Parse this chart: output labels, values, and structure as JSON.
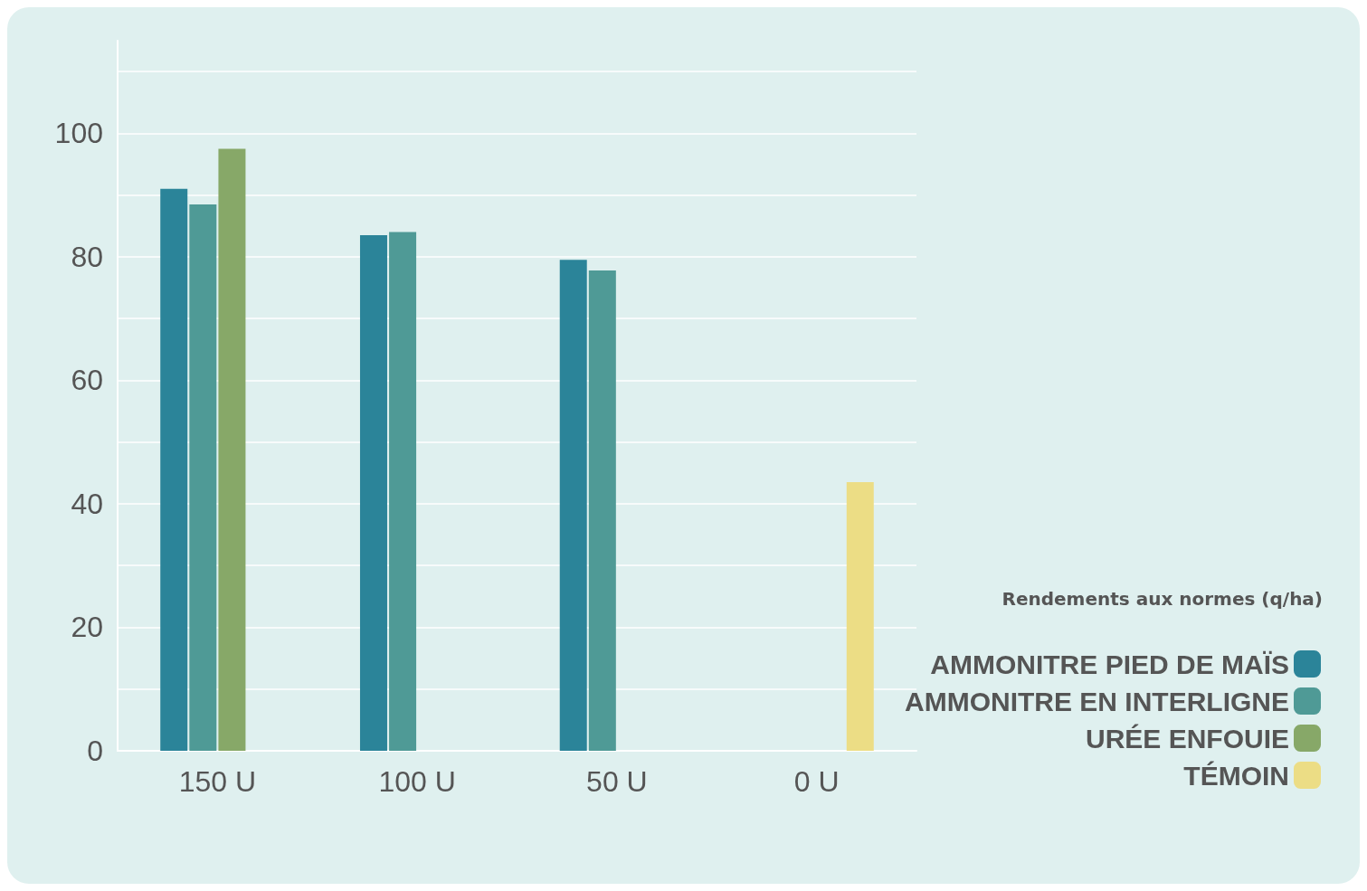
{
  "chart_data": {
    "type": "bar",
    "categories": [
      "150 U",
      "100 U",
      "50 U",
      "0 U"
    ],
    "series": [
      {
        "name": "AMMONITRE PIED DE MAÏS",
        "color": "#2b8499",
        "values": [
          91,
          83.5,
          79.5,
          null
        ]
      },
      {
        "name": "AMMONITRE EN INTERLIGNE",
        "color": "#4f9a96",
        "values": [
          88.5,
          84,
          77.8,
          null
        ]
      },
      {
        "name": "URÉE ENFOUIE",
        "color": "#87a868",
        "values": [
          97.5,
          null,
          null,
          null
        ]
      },
      {
        "name": "TÉMOIN",
        "color": "#ecdd85",
        "values": [
          null,
          null,
          null,
          43.5
        ]
      }
    ],
    "legend_title": "Rendements aux normes (q/ha)",
    "legend": "bottom right",
    "ylim": [
      0,
      115
    ],
    "yticks": [
      0,
      {
        "value": 10,
        "label": null
      },
      20,
      {
        "value": 30,
        "label": null
      },
      40,
      {
        "value": 50,
        "label": null
      },
      60,
      {
        "value": 70,
        "label": null
      },
      80,
      {
        "value": 90,
        "label": null
      },
      100,
      {
        "value": 110,
        "label": null
      }
    ],
    "grid": "y"
  }
}
